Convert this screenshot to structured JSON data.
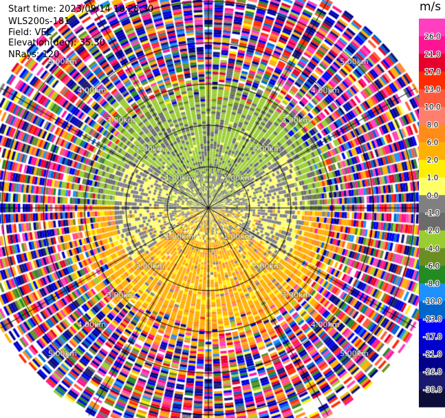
{
  "info": {
    "start_time_label": "Start time:",
    "start_time": "2023/09/14 18:28:30",
    "instrument": "WLS200s-181",
    "field_label": "Field:",
    "field": "VEL",
    "elevation_label": "Elevation(deg):",
    "elevation": "35.30",
    "nrays_label": "NRays:",
    "nrays": "120"
  },
  "chart_data": {
    "type": "heatmap",
    "projection": "polar-ppi",
    "field": "VEL",
    "n_rays": 120,
    "range_rings_km": [
      1.0,
      2.0,
      3.0,
      4.0,
      5.0
    ],
    "ring_labels": [
      "1.00km",
      "2.00km",
      "3.00km",
      "4.00km",
      "5.00km"
    ],
    "max_range_km": 5.8,
    "colorbar": {
      "unit": "m/s",
      "vmin": -30.0,
      "vmax": 30.0,
      "tick_labels": [
        "26.0",
        "21.0",
        "17.0",
        "13.0",
        "10.0",
        "8.0",
        "6.0",
        "2.0",
        "1.0",
        "0.0",
        "-1.0",
        "-2.0",
        "-4.0",
        "-6.0",
        "-8.0",
        "-10.0",
        "-13.0",
        "-17.0",
        "-21.0",
        "-26.0",
        "-30.0"
      ],
      "colors": [
        "#ff3fbf",
        "#ff1493",
        "#e6002e",
        "#ff2a00",
        "#ff5a3c",
        "#ff7f6e",
        "#ff8c1a",
        "#ffb000",
        "#ffee00",
        "#ffff66",
        "#808080",
        "#6b6b6b",
        "#9acd32",
        "#6b8e23",
        "#228b22",
        "#1e90ff",
        "#0066cc",
        "#0000ff",
        "#0000cd",
        "#00008b",
        "#191970",
        "#0d0d3a"
      ]
    },
    "pattern": {
      "inner_km": 0.85,
      "clean_km": 2.55,
      "near_zero_sector": "west and east beside center",
      "negative_sector": "north (-1 to -4 m/s, green)",
      "positive_sector": "south (+1 to +8 m/s, yellow/orange)",
      "outer_region": "noisy, all values"
    }
  }
}
